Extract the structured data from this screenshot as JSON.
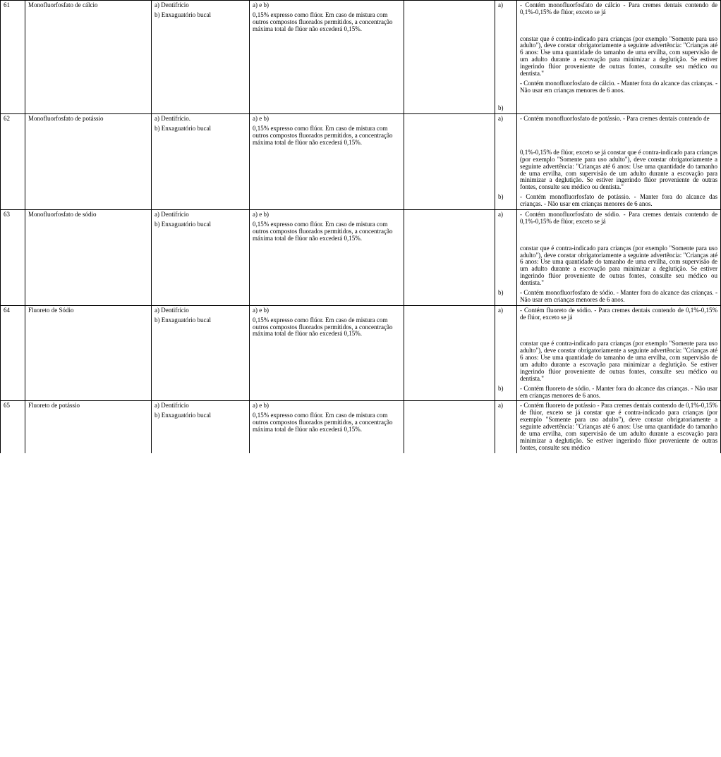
{
  "conc_text": "0,15% expresso como flúor. Em caso de mistura com outros compostos fluorados permitidos, a concentração máxima total de flúor não excederá 0,15%.",
  "ab": "a) e b)",
  "c3a": "a) Dentifrício",
  "c3a_dot": "a) Dentifrício.",
  "c3b": "b) Enxaguatório bucal",
  "row61": {
    "num": "61",
    "sub": "Monofluorfosfato de cálcio",
    "w_a": "- Contém monofluorfosfato de cálcio\n- Para cremes dentais contendo de 0,1%-0,15% de flúor, exceto se já",
    "w_mid": "constar que é contra-indicado para crianças (por exemplo \"Somente para uso adulto\"), deve constar obrigatoriamente a seguinte advertência: \"Crianças até 6 anos: Use uma quantidade do tamanho de uma ervilha, com supervisão de um adulto durante a escovação para minimizar a deglutição. Se estiver ingerindo flúor proveniente de outras fontes, consulte seu médico ou dentista.\"",
    "w_b": "- Contém monofluorfosfato de cálcio.\n- Manter fora do alcance das crianças.\n- Não usar em crianças menores de 6 anos."
  },
  "row62": {
    "num": "62",
    "sub": "Monofluorfosfato de potássio",
    "w_a": "- Contém monofluorfosfato de potássio.\n- Para cremes dentais contendo de",
    "w_mid": "0,1%-0,15% de flúor, exceto se já constar que é contra-indicado para crianças (por exemplo \"Somente para uso adulto\"), deve constar obrigatoriamente a seguinte advertência: \"Crianças até 6 anos: Use uma quantidade do tamanho de uma ervilha, com supervisão de um adulto durante a escovação para minimizar a deglutição. Se estiver ingerindo flúor proveniente de outras fontes, consulte seu médico ou dentista.\"",
    "w_b": "- Contém monofluorfosfato de potássio.\n- Manter fora do alcance das crianças.\n- Não usar em crianças menores de 6 anos."
  },
  "row63": {
    "num": "63",
    "sub": "Monofluorfosfato de sódio",
    "w_a": "- Contém monofluorfosfato de sódio.\n- Para cremes dentais contendo de 0,1%-0,15% de flúor, exceto se já",
    "w_mid": "constar que é contra-indicado para crianças (por exemplo \"Somente para uso adulto\"), deve constar obrigatoriamente a seguinte advertência: \"Crianças até 6 anos: Use uma quantidade do tamanho de uma ervilha, com supervisão de um adulto durante a escovação para minimizar a deglutição. Se estiver ingerindo flúor proveniente de outras fontes, consulte seu médico ou dentista.\"",
    "w_b": "- Contém monofluorfosfato de sódio.\n- Manter fora do alcance das crianças.\n- Não usar em crianças menores de 6 anos."
  },
  "row64": {
    "num": "64",
    "sub": "Fluoreto de Sódio",
    "w_a": "- Contém fluoreto de sódio.\n- Para cremes dentais contendo de 0,1%-0,15% de flúor, exceto se já",
    "w_mid": "constar que é contra-indicado para crianças (por exemplo \"Somente para uso adulto\"), deve constar obrigatoriamente a seguinte advertência: \"Crianças até 6 anos: Use uma quantidade do tamanho de uma ervilha, com supervisão de um adulto durante a escovação para minimizar a deglutição. Se estiver ingerindo flúor proveniente de outras fontes, consulte seu médico ou dentista.\"",
    "w_b": "- Contém fluoreto de sódio.\n- Manter fora do alcance das crianças.\n- Não usar em crianças menores de 6 anos."
  },
  "row65": {
    "num": "65",
    "sub": "Fluoreto de potássio",
    "w_a": "- Contém fluoreto de potássio\n- Para cremes dentais contendo de 0,1%-0,15% de flúor, exceto se já constar que é contra-indicado para crianças (por exemplo \"Somente para uso adulto\"), deve constar obrigatoriamente a seguinte advertência: \"Crianças até 6 anos: Use uma quantidade do tamanho de uma ervilha, com supervisão de um adulto durante a escovação para minimizar a deglutição. Se estiver ingerindo flúor proveniente de outras fontes, consulte seu médico"
  },
  "lbl_a": "a)",
  "lbl_b": "b)"
}
